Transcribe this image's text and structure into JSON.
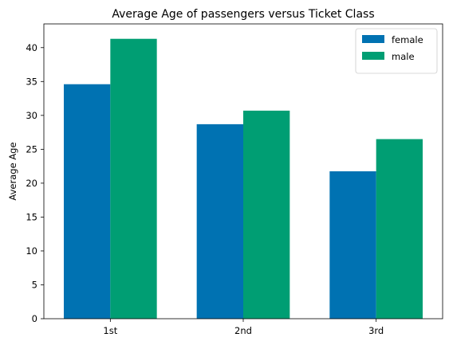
{
  "chart_data": {
    "type": "bar",
    "title": "Average Age of passengers versus Ticket Class",
    "xlabel": "",
    "ylabel": "Average Age",
    "categories": [
      "1st",
      "2nd",
      "3rd"
    ],
    "series": [
      {
        "name": "female",
        "values": [
          34.6,
          28.7,
          21.75
        ],
        "color": "#0072b2"
      },
      {
        "name": "male",
        "values": [
          41.3,
          30.7,
          26.5
        ],
        "color": "#009e73"
      }
    ],
    "ylim": [
      0,
      43.5
    ],
    "yticks": [
      0,
      5,
      10,
      15,
      20,
      25,
      30,
      35,
      40
    ],
    "grid": false,
    "legend_position": "top-right"
  }
}
